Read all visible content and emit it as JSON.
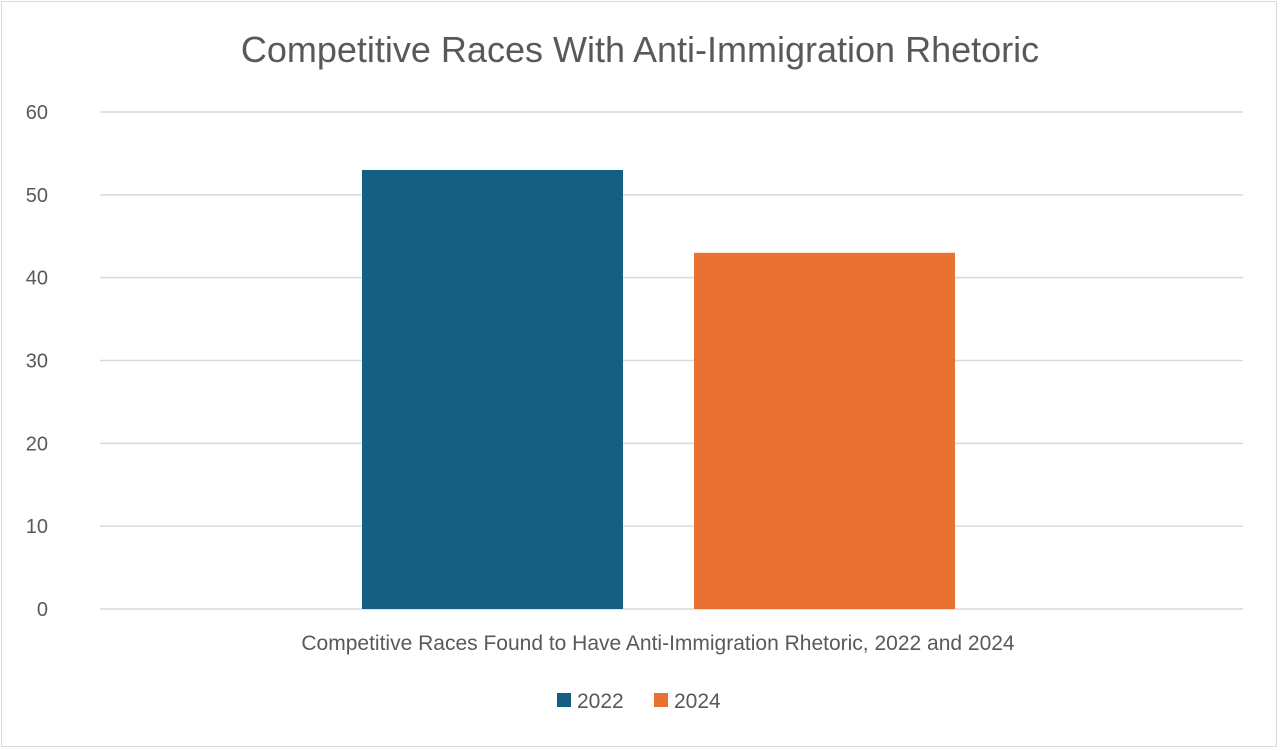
{
  "chart_data": {
    "type": "bar",
    "title": "Competitive Races With Anti-Immigration Rhetoric",
    "xlabel": "Competitive Races Found to Have Anti-Immigration Rhetoric, 2022 and 2024",
    "ylabel": "",
    "categories": [
      ""
    ],
    "series": [
      {
        "name": "2022",
        "values": [
          53
        ],
        "color": "#156082"
      },
      {
        "name": "2024",
        "values": [
          43
        ],
        "color": "#e97132"
      }
    ],
    "ylim": [
      0,
      60
    ],
    "yticks": [
      0,
      10,
      20,
      30,
      40,
      50,
      60
    ],
    "grid": true,
    "legend": "bottom"
  }
}
